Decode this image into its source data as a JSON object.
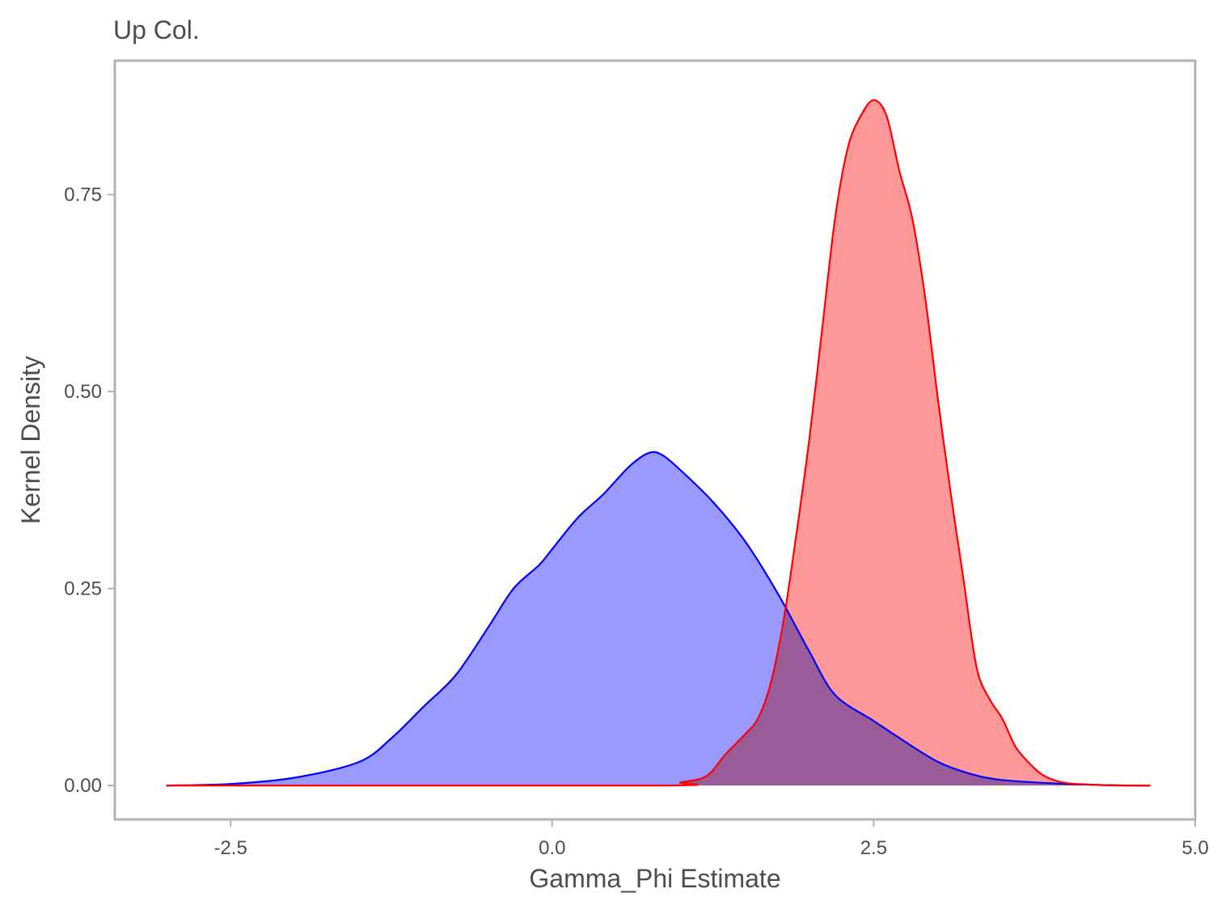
{
  "chart_data": {
    "type": "area",
    "title": "Up Col.",
    "xlabel": "Gamma_Phi Estimate",
    "ylabel": "Kernel Density",
    "xlim": [
      -3.4,
      5.0
    ],
    "ylim": [
      -0.043,
      0.92
    ],
    "xticks": [
      -2.5,
      0.0,
      2.5,
      5.0
    ],
    "xtick_labels": [
      "-2.5",
      "0.0",
      "2.5",
      "5.0"
    ],
    "yticks": [
      0.0,
      0.25,
      0.5,
      0.75
    ],
    "ytick_labels": [
      "0.00",
      "0.25",
      "0.50",
      "0.75"
    ],
    "grid": false,
    "legend": "none",
    "series": [
      {
        "color": "#0000ff",
        "fill": "#9999ff",
        "x": [
          -3.0,
          -2.5,
          -2.0,
          -1.5,
          -1.25,
          -1.0,
          -0.75,
          -0.5,
          -0.3,
          -0.1,
          0.0,
          0.2,
          0.4,
          0.6,
          0.75,
          0.85,
          1.0,
          1.25,
          1.5,
          1.75,
          2.0,
          2.2,
          2.5,
          2.75,
          3.0,
          3.25,
          3.5,
          4.0,
          4.5,
          4.65
        ],
        "y": [
          0.0,
          0.002,
          0.01,
          0.03,
          0.06,
          0.1,
          0.14,
          0.2,
          0.25,
          0.28,
          0.3,
          0.34,
          0.37,
          0.405,
          0.422,
          0.42,
          0.4,
          0.36,
          0.31,
          0.245,
          0.17,
          0.115,
          0.082,
          0.055,
          0.03,
          0.015,
          0.007,
          0.002,
          0.0,
          0.0
        ]
      },
      {
        "color": "#ff0000",
        "fill": "#ff9999",
        "x": [
          -3.0,
          0.8,
          1.0,
          1.2,
          1.35,
          1.5,
          1.6,
          1.7,
          1.8,
          1.9,
          2.0,
          2.1,
          2.2,
          2.3,
          2.4,
          2.5,
          2.6,
          2.7,
          2.8,
          2.9,
          3.0,
          3.1,
          3.2,
          3.3,
          3.4,
          3.5,
          3.6,
          3.7,
          3.8,
          3.9,
          4.0,
          4.2,
          4.4,
          4.65
        ],
        "y": [
          0.0,
          0.0,
          0.004,
          0.012,
          0.04,
          0.065,
          0.085,
          0.13,
          0.21,
          0.32,
          0.44,
          0.58,
          0.72,
          0.81,
          0.85,
          0.87,
          0.85,
          0.78,
          0.72,
          0.62,
          0.49,
          0.37,
          0.26,
          0.15,
          0.11,
          0.085,
          0.05,
          0.03,
          0.015,
          0.007,
          0.003,
          0.001,
          0.0,
          0.0
        ]
      }
    ]
  }
}
